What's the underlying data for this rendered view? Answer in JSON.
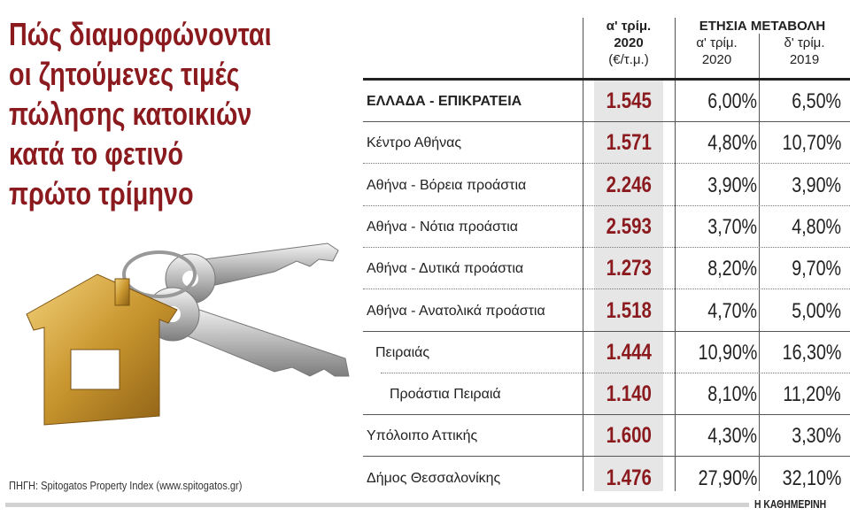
{
  "title_lines": [
    "Πώς διαμορφώνονται",
    "οι ζητούμενες τιμές",
    "πώλησης κατοικιών",
    "κατά το φετινό",
    "πρώτο τρίμηνο"
  ],
  "colors": {
    "accent": "#8b1a1f",
    "shade": "#e6e6e6"
  },
  "illustration": "house-shaped-keychain-with-keys",
  "source": "ΠΗΓΗ: Spitogatos Property Index (www.spitogatos.gr)",
  "brand": "Η ΚΑΘΗΜΕΡΙΝΗ",
  "chart_data": {
    "type": "table",
    "header": {
      "price_col": [
        "α' τρίμ.",
        "2020",
        "(€/τ.μ.)"
      ],
      "group": "ΕΤΗΣΙΑ ΜΕΤΑΒΟΛΗ",
      "change_q1": [
        "α' τρίμ.",
        "2020"
      ],
      "change_q4": [
        "δ' τρίμ.",
        "2019"
      ]
    },
    "rows": [
      {
        "name": "ΕΛΛΑΔΑ - ΕΠΙΚΡΑΤΕΙΑ",
        "price": "1.545",
        "change_q1_2020": "6,00%",
        "change_q4_2019": "6,50%"
      },
      {
        "name": "Κέντρο Αθήνας",
        "price": "1.571",
        "change_q1_2020": "4,80%",
        "change_q4_2019": "10,70%"
      },
      {
        "name": "Αθήνα - Βόρεια προάστια",
        "price": "2.246",
        "change_q1_2020": "3,90%",
        "change_q4_2019": "3,90%"
      },
      {
        "name": "Αθήνα - Νότια προάστια",
        "price": "2.593",
        "change_q1_2020": "3,70%",
        "change_q4_2019": "4,80%"
      },
      {
        "name": "Αθήνα - Δυτικά προάστια",
        "price": "1.273",
        "change_q1_2020": "8,20%",
        "change_q4_2019": "9,70%"
      },
      {
        "name": "Αθήνα - Ανατολικά προάστια",
        "price": "1.518",
        "change_q1_2020": "4,70%",
        "change_q4_2019": "5,00%"
      },
      {
        "name": "Πειραιάς",
        "price": "1.444",
        "change_q1_2020": "10,90%",
        "change_q4_2019": "16,30%"
      },
      {
        "name": "Προάστια Πειραιά",
        "price": "1.140",
        "change_q1_2020": "8,10%",
        "change_q4_2019": "11,20%"
      },
      {
        "name": "Υπόλοιπο Αττικής",
        "price": "1.600",
        "change_q1_2020": "4,30%",
        "change_q4_2019": "3,30%"
      },
      {
        "name": "Δήμος Θεσσαλονίκης",
        "price": "1.476",
        "change_q1_2020": "27,90%",
        "change_q4_2019": "32,10%"
      }
    ]
  }
}
